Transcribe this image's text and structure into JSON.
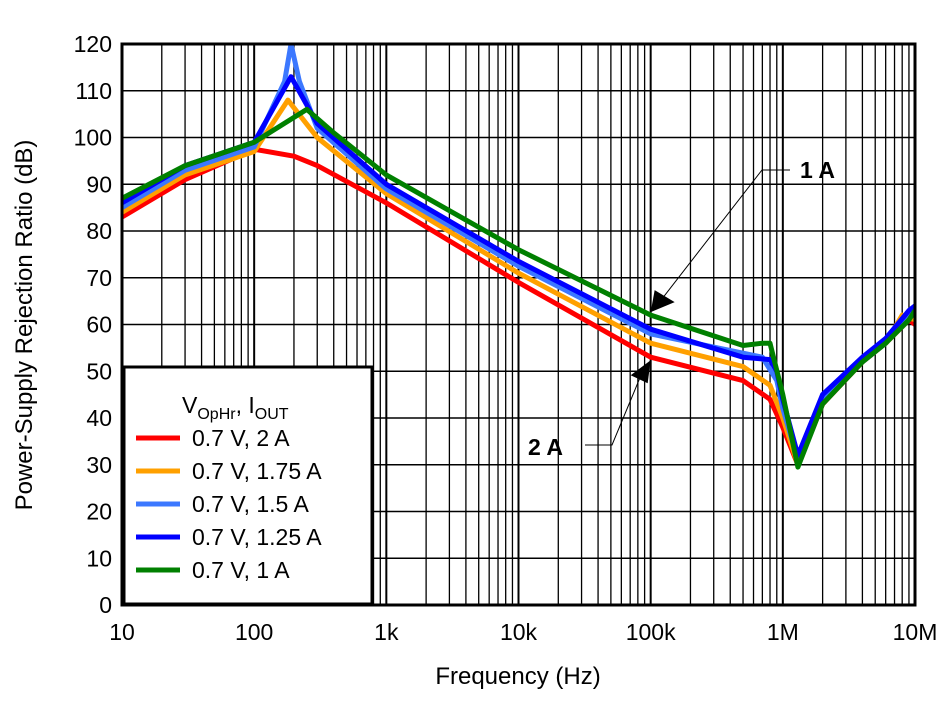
{
  "chart_data": {
    "type": "line",
    "title": "",
    "xlabel": "Frequency (Hz)",
    "ylabel": "Power-Supply Rejection Ratio (dB)",
    "xscale": "log",
    "xlim": [
      10,
      10000000
    ],
    "ylim": [
      0,
      120
    ],
    "grid": true,
    "x_ticks": [
      10,
      100,
      1000,
      10000,
      100000,
      1000000,
      10000000
    ],
    "x_tick_labels": [
      "10",
      "100",
      "1k",
      "10k",
      "100k",
      "1M",
      "10M"
    ],
    "y_ticks": [
      0,
      10,
      20,
      30,
      40,
      50,
      60,
      70,
      80,
      90,
      100,
      110,
      120
    ],
    "legend": {
      "placement": "bottom-left",
      "title_main": "V",
      "title_sub1": "OpHr",
      "title_sep": ", I",
      "title_sub2": "OUT"
    },
    "series": [
      {
        "name": "0.7 V, 2 A",
        "color": "#ff0000",
        "x": [
          10,
          30,
          100,
          200,
          300,
          1000,
          10000,
          100000,
          500000,
          800000,
          1000000,
          1300000,
          2000000,
          4000000,
          6000000,
          9000000,
          10000000
        ],
        "y": [
          83,
          91,
          97.5,
          96,
          94,
          86,
          69,
          53,
          48,
          44,
          38,
          30,
          43,
          52,
          56,
          61,
          60
        ]
      },
      {
        "name": "0.7 V, 1.75 A",
        "color": "#ffa000",
        "x": [
          10,
          30,
          100,
          180,
          300,
          1000,
          10000,
          100000,
          500000,
          800000,
          1000000,
          1300000,
          2000000,
          4000000,
          6000000,
          8000000,
          10000000
        ],
        "y": [
          84,
          92,
          97,
          108,
          100,
          88,
          71,
          56,
          51,
          47,
          40,
          30,
          44,
          52,
          56,
          62,
          61
        ]
      },
      {
        "name": "0.7 V, 1.5 A",
        "color": "#3c78ff",
        "x": [
          10,
          30,
          100,
          170,
          190,
          220,
          300,
          1000,
          10000,
          100000,
          700000,
          900000,
          1000000,
          1300000,
          2000000,
          4000000,
          6000000,
          9000000,
          10000000
        ],
        "y": [
          85,
          93,
          98,
          112,
          120,
          112,
          102,
          89,
          72.5,
          58,
          53,
          48,
          42,
          31,
          44,
          52,
          56,
          62,
          62
        ]
      },
      {
        "name": "0.7 V, 1.25 A",
        "color": "#0000ff",
        "x": [
          10,
          30,
          100,
          190,
          300,
          1000,
          10000,
          100000,
          500000,
          800000,
          900000,
          1000000,
          1300000,
          2000000,
          4000000,
          6000000,
          9000000,
          10000000
        ],
        "y": [
          86,
          94,
          99,
          113,
          103,
          90,
          73.5,
          59,
          53,
          52.5,
          50,
          44,
          32,
          45,
          53,
          57,
          63,
          64
        ]
      },
      {
        "name": "0.7 V, 1 A",
        "color": "#008000",
        "x": [
          10,
          30,
          100,
          250,
          400,
          1000,
          10000,
          100000,
          500000,
          700000,
          800000,
          1000000,
          1300000,
          2000000,
          4000000,
          6000000,
          9000000,
          10000000
        ],
        "y": [
          87,
          94,
          99,
          106,
          101,
          92,
          76,
          62,
          55.5,
          56,
          56,
          45,
          29.5,
          43,
          52,
          56,
          61,
          63
        ]
      }
    ],
    "annotations": [
      {
        "text": "1 A",
        "points_to_x": 100000,
        "points_to_y": 62
      },
      {
        "text": "2 A",
        "points_to_x": 100000,
        "points_to_y": 53
      }
    ]
  }
}
